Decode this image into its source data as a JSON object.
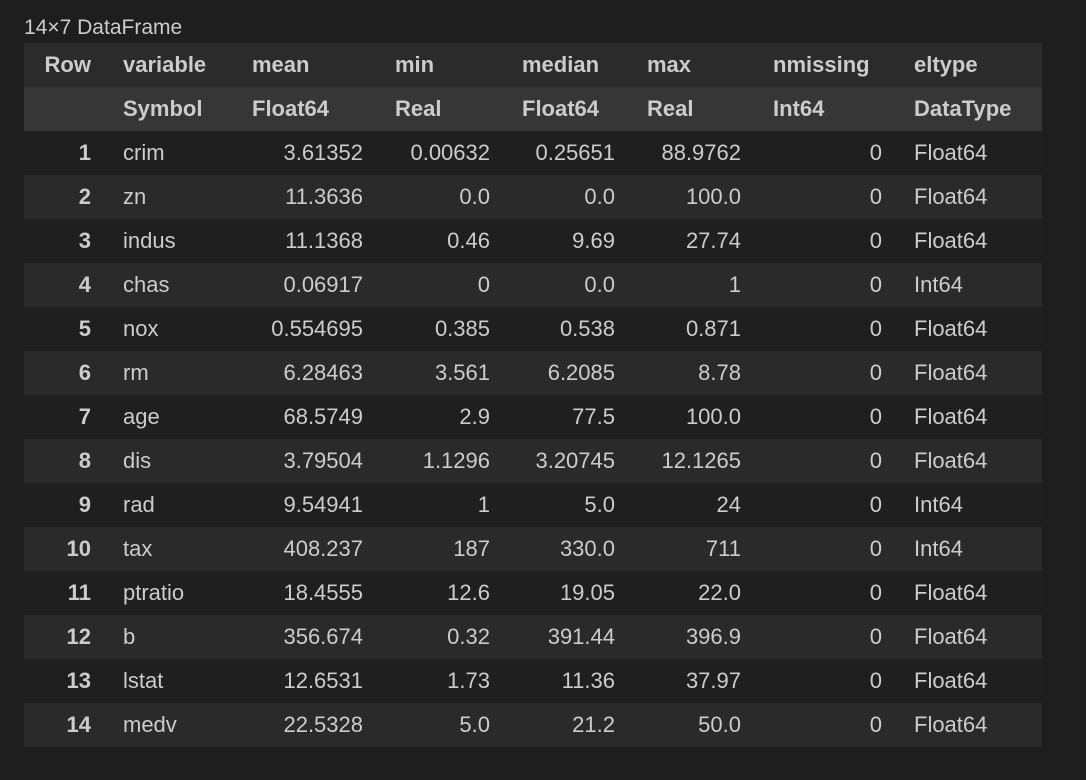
{
  "title": "14×7 DataFrame",
  "columns": [
    "Row",
    "variable",
    "mean",
    "min",
    "median",
    "max",
    "nmissing",
    "eltype"
  ],
  "types": [
    "",
    "Symbol",
    "Float64",
    "Real",
    "Float64",
    "Real",
    "Int64",
    "DataType"
  ],
  "rows": [
    [
      "1",
      "crim",
      "3.61352",
      "0.00632",
      "0.25651",
      "88.9762",
      "0",
      "Float64"
    ],
    [
      "2",
      "zn",
      "11.3636",
      "0.0",
      "0.0",
      "100.0",
      "0",
      "Float64"
    ],
    [
      "3",
      "indus",
      "11.1368",
      "0.46",
      "9.69",
      "27.74",
      "0",
      "Float64"
    ],
    [
      "4",
      "chas",
      "0.06917",
      "0",
      "0.0",
      "1",
      "0",
      "Int64"
    ],
    [
      "5",
      "nox",
      "0.554695",
      "0.385",
      "0.538",
      "0.871",
      "0",
      "Float64"
    ],
    [
      "6",
      "rm",
      "6.28463",
      "3.561",
      "6.2085",
      "8.78",
      "0",
      "Float64"
    ],
    [
      "7",
      "age",
      "68.5749",
      "2.9",
      "77.5",
      "100.0",
      "0",
      "Float64"
    ],
    [
      "8",
      "dis",
      "3.79504",
      "1.1296",
      "3.20745",
      "12.1265",
      "0",
      "Float64"
    ],
    [
      "9",
      "rad",
      "9.54941",
      "1",
      "5.0",
      "24",
      "0",
      "Int64"
    ],
    [
      "10",
      "tax",
      "408.237",
      "187",
      "330.0",
      "711",
      "0",
      "Int64"
    ],
    [
      "11",
      "ptratio",
      "18.4555",
      "12.6",
      "19.05",
      "22.0",
      "0",
      "Float64"
    ],
    [
      "12",
      "b",
      "356.674",
      "0.32",
      "391.44",
      "396.9",
      "0",
      "Float64"
    ],
    [
      "13",
      "lstat",
      "12.6531",
      "1.73",
      "11.36",
      "37.97",
      "0",
      "Float64"
    ],
    [
      "14",
      "medv",
      "22.5328",
      "5.0",
      "21.2",
      "50.0",
      "0",
      "Float64"
    ]
  ]
}
